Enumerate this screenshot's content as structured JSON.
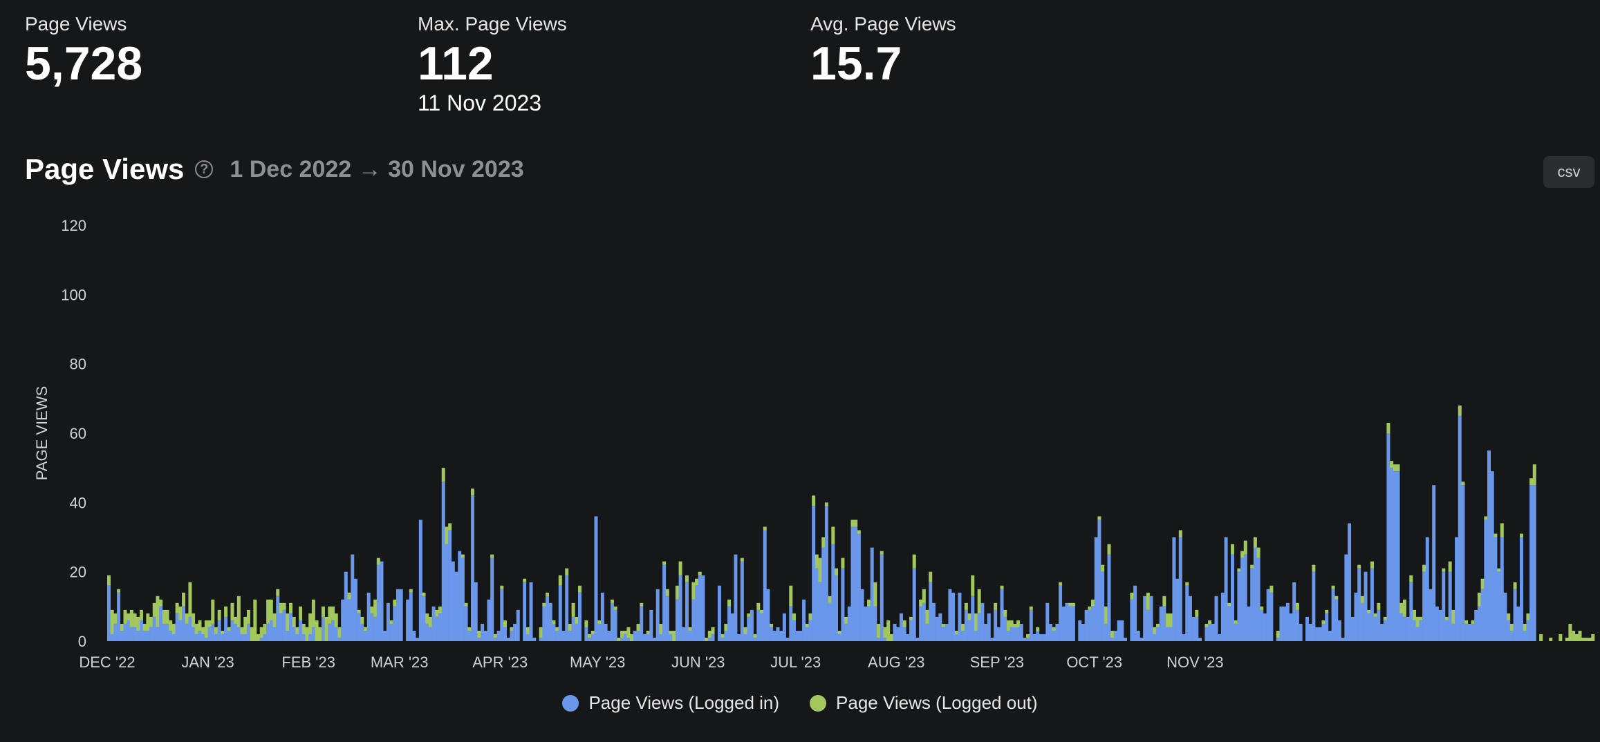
{
  "stats": [
    {
      "label": "Page Views",
      "value": "5,728"
    },
    {
      "label": "Max. Page Views",
      "value": "112",
      "sub": "11 Nov 2023"
    },
    {
      "label": "Avg. Page Views",
      "value": "15.7"
    }
  ],
  "header": {
    "title": "Page Views",
    "date_range": "1 Dec 2022 → 30 Nov 2023",
    "csv_label": "csv",
    "help_glyph": "?"
  },
  "colors": {
    "logged_in": "#6b97ea",
    "logged_out": "#a2c85d"
  },
  "chart_data": {
    "type": "bar",
    "stacked": true,
    "ylabel": "PAGE VIEWS",
    "ylim": [
      0,
      120
    ],
    "yticks": [
      0,
      20,
      40,
      60,
      80,
      100,
      120
    ],
    "x_start": "2022-12-01",
    "x_end": "2023-11-30",
    "x_ticks": [
      {
        "label": "DEC '22",
        "date": "2022-12-01"
      },
      {
        "label": "JAN '23",
        "date": "2023-01-01"
      },
      {
        "label": "FEB '23",
        "date": "2023-02-01"
      },
      {
        "label": "MAR '23",
        "date": "2023-03-01"
      },
      {
        "label": "APR '23",
        "date": "2023-04-01"
      },
      {
        "label": "MAY '23",
        "date": "2023-05-01"
      },
      {
        "label": "JUN '23",
        "date": "2023-06-01"
      },
      {
        "label": "JUL '23",
        "date": "2023-07-01"
      },
      {
        "label": "AUG '23",
        "date": "2023-08-01"
      },
      {
        "label": "SEP '23",
        "date": "2023-09-01"
      },
      {
        "label": "OCT '23",
        "date": "2023-10-01"
      },
      {
        "label": "NOV '23",
        "date": "2023-11-01"
      }
    ],
    "series": [
      {
        "name": "Page Views (Logged in)",
        "values": [
          16,
          2,
          5,
          14,
          3,
          5,
          6,
          4,
          4,
          3,
          6,
          3,
          3,
          4,
          7,
          4,
          10,
          5,
          5,
          3,
          2,
          8,
          6,
          10,
          5,
          7,
          4,
          2,
          3,
          2,
          1,
          4,
          5,
          2,
          6,
          2,
          7,
          3,
          6,
          5,
          4,
          2,
          2,
          5,
          0,
          0,
          0,
          1,
          2,
          5,
          6,
          4,
          13,
          8,
          9,
          3,
          8,
          4,
          2,
          6,
          2,
          0,
          2,
          4,
          0,
          0,
          7,
          0,
          5,
          6,
          4,
          1,
          12,
          20,
          12,
          25,
          18,
          8,
          5,
          3,
          14,
          8,
          7,
          22,
          23,
          3,
          11,
          5,
          10,
          15,
          15,
          0,
          12,
          14,
          3,
          1,
          35,
          13,
          5,
          4,
          10,
          7,
          8,
          46,
          28,
          32,
          23,
          20,
          26,
          24,
          10,
          3,
          42,
          17,
          1,
          5,
          3,
          12,
          24,
          1,
          3,
          15,
          4,
          1,
          3,
          5,
          9,
          0,
          17,
          2,
          17,
          1,
          0,
          1,
          10,
          13,
          11,
          5,
          3,
          16,
          3,
          19,
          3,
          7,
          5,
          14,
          0,
          4,
          1,
          2,
          36,
          5,
          14,
          5,
          3,
          11,
          9,
          0,
          1,
          2,
          1,
          0,
          3,
          3,
          10,
          2,
          2,
          9,
          1,
          15,
          2,
          22,
          13,
          2,
          0,
          12,
          19,
          4,
          17,
          3,
          12,
          16,
          19,
          19,
          0,
          1,
          2,
          0,
          16,
          1,
          3,
          10,
          8,
          25,
          2,
          23,
          2,
          7,
          9,
          1,
          9,
          8,
          32,
          15,
          4,
          3,
          4,
          3,
          8,
          1,
          10,
          6,
          3,
          3,
          12,
          4,
          6,
          39,
          21,
          17,
          27,
          39,
          11,
          28,
          19,
          2,
          21,
          5,
          10,
          33,
          33,
          31,
          15,
          10,
          10,
          27,
          10,
          1,
          25,
          1,
          0,
          0,
          5,
          4,
          8,
          4,
          2,
          6,
          21,
          1,
          10,
          11,
          5,
          17,
          11,
          7,
          8,
          4,
          5,
          15,
          14,
          2,
          14,
          3,
          9,
          6,
          13,
          3,
          8,
          11,
          5,
          8,
          1,
          9,
          4,
          15,
          7,
          3,
          4,
          4,
          4,
          5,
          1,
          1,
          9,
          2,
          3,
          2,
          2,
          11,
          5,
          3,
          5,
          16,
          10,
          11,
          10,
          10,
          0,
          6,
          5,
          9,
          9,
          10,
          30,
          35,
          20,
          5,
          25,
          1,
          3,
          6,
          6,
          1,
          0,
          12,
          16,
          3,
          1,
          13,
          9,
          13,
          2,
          4,
          10,
          10,
          4,
          4,
          30,
          18,
          30,
          2,
          16,
          13,
          7,
          7,
          1,
          0,
          4,
          5,
          5,
          13,
          2,
          14,
          30,
          10,
          25,
          5,
          20,
          24,
          25,
          10,
          21,
          27,
          24,
          9,
          8,
          15,
          14,
          0,
          1,
          10,
          10,
          11,
          8,
          17,
          9,
          5,
          0,
          7,
          5,
          20,
          4,
          4,
          5,
          8,
          3,
          15,
          12,
          6,
          1,
          25,
          34,
          7,
          14,
          21,
          11,
          20,
          8,
          21,
          7,
          9,
          5,
          6,
          60,
          50,
          49,
          49,
          8,
          7,
          7,
          17,
          6,
          4,
          6,
          20,
          30,
          15,
          45,
          10,
          9,
          20,
          6,
          20,
          5,
          30,
          65,
          45,
          5,
          5,
          5,
          9,
          10,
          15,
          35,
          55,
          49,
          30,
          20,
          30,
          14,
          6,
          3,
          15,
          10,
          30,
          3,
          6,
          45,
          45
        ],
        "color": "#6b97ea"
      },
      {
        "name": "Page Views (Logged out)",
        "values": [
          3,
          7,
          3,
          1,
          2,
          4,
          2,
          5,
          4,
          4,
          3,
          2,
          5,
          3,
          4,
          9,
          2,
          4,
          4,
          3,
          3,
          3,
          4,
          4,
          3,
          10,
          4,
          3,
          3,
          2,
          5,
          2,
          7,
          2,
          3,
          1,
          3,
          1,
          5,
          2,
          9,
          2,
          5,
          4,
          4,
          12,
          2,
          3,
          3,
          7,
          6,
          4,
          2,
          3,
          2,
          5,
          3,
          3,
          2,
          4,
          3,
          4,
          6,
          8,
          6,
          4,
          3,
          7,
          5,
          4,
          4,
          3,
          0,
          0,
          2,
          0,
          0,
          1,
          2,
          1,
          0,
          2,
          5,
          2,
          0,
          0,
          0,
          1,
          2,
          0,
          0,
          0,
          0,
          1,
          0,
          0,
          0,
          1,
          3,
          3,
          0,
          2,
          2,
          4,
          5,
          2,
          0,
          0,
          0,
          1,
          1,
          1,
          2,
          0,
          2,
          0,
          0,
          0,
          1,
          1,
          0,
          1,
          2,
          0,
          1,
          0,
          0,
          0,
          1,
          2,
          0,
          0,
          0,
          3,
          1,
          1,
          0,
          1,
          1,
          3,
          0,
          2,
          2,
          4,
          2,
          2,
          0,
          2,
          1,
          1,
          0,
          1,
          0,
          0,
          0,
          1,
          1,
          1,
          2,
          1,
          3,
          2,
          0,
          2,
          1,
          0,
          1,
          0,
          0,
          0,
          3,
          1,
          2,
          1,
          3,
          4,
          4,
          0,
          2,
          1,
          5,
          2,
          1,
          0,
          1,
          2,
          2,
          0,
          0,
          1,
          2,
          2,
          0,
          0,
          0,
          1,
          2,
          1,
          0,
          1,
          2,
          1,
          1,
          0,
          1,
          0,
          0,
          0,
          0,
          0,
          6,
          2,
          0,
          0,
          0,
          1,
          2,
          3,
          4,
          7,
          3,
          1,
          2,
          5,
          2,
          1,
          3,
          2,
          0,
          2,
          2,
          1,
          0,
          0,
          2,
          0,
          7,
          4,
          1,
          3,
          6,
          2,
          0,
          0,
          0,
          2,
          0,
          1,
          4,
          0,
          2,
          4,
          4,
          3,
          0,
          0,
          0,
          1,
          0,
          0,
          0,
          1,
          0,
          2,
          2,
          2,
          6,
          5,
          7,
          0,
          0,
          0,
          0,
          2,
          0,
          1,
          2,
          3,
          2,
          1,
          2,
          0,
          0,
          1,
          1,
          0,
          1,
          0,
          0,
          0,
          0,
          1,
          0,
          1,
          0,
          0,
          1,
          1,
          0,
          0,
          0,
          0,
          1,
          2,
          0,
          1,
          2,
          5,
          3,
          2,
          0,
          0,
          0,
          0,
          0,
          2,
          0,
          0,
          0,
          0,
          5,
          0,
          2,
          1,
          0,
          3,
          4,
          4,
          0,
          0,
          2,
          0,
          1,
          0,
          0,
          2,
          0,
          0,
          1,
          1,
          0,
          0,
          0,
          0,
          0,
          1,
          3,
          1,
          1,
          2,
          4,
          0,
          1,
          3,
          3,
          1,
          0,
          0,
          2,
          0,
          2,
          0,
          0,
          0,
          0,
          0,
          2,
          0,
          0,
          0,
          0,
          2,
          0,
          0,
          1,
          1,
          0,
          1,
          1,
          0,
          0,
          0,
          0,
          0,
          0,
          1,
          2,
          0,
          1,
          2,
          1,
          2,
          0,
          1,
          3,
          2,
          2,
          2,
          3,
          5,
          0,
          2,
          3,
          3,
          1,
          2,
          0,
          0,
          0,
          0,
          0,
          1,
          1,
          3,
          4,
          0,
          3,
          1,
          1,
          0,
          1,
          0,
          4,
          3,
          1,
          0,
          0,
          1,
          1,
          4,
          0,
          2,
          2,
          2,
          0,
          1,
          2,
          2,
          2,
          6,
          0,
          2,
          0,
          0,
          1,
          0,
          0,
          2,
          0,
          1,
          5,
          3,
          2,
          3,
          1,
          1,
          1,
          2
        ],
        "color": "#a2c85d"
      }
    ]
  },
  "legend": [
    {
      "label": "Page Views (Logged in)",
      "color": "#6b97ea"
    },
    {
      "label": "Page Views (Logged out)",
      "color": "#a2c85d"
    }
  ]
}
